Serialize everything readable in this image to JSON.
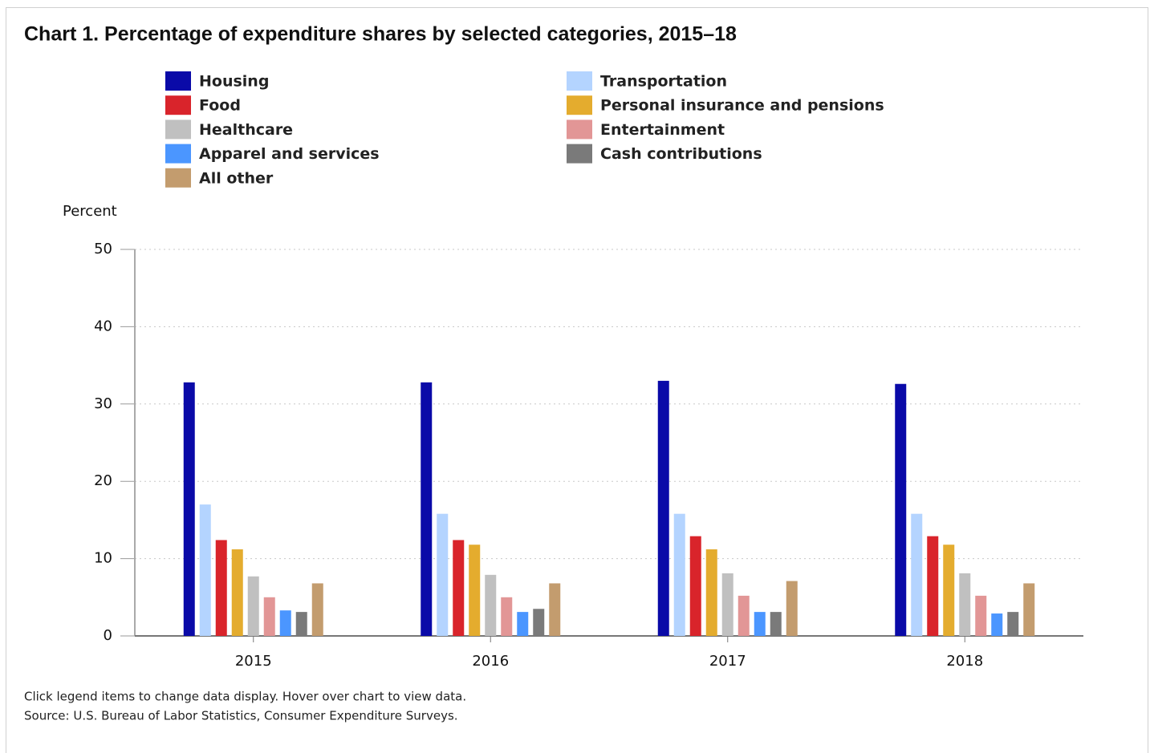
{
  "chart_data": {
    "type": "bar",
    "title": "Chart 1. Percentage of expenditure shares by selected categories, 2015–18",
    "y_label": "Percent",
    "categories": [
      "2015",
      "2016",
      "2017",
      "2018"
    ],
    "series": [
      {
        "name": "Housing",
        "color": "#0a0aa8",
        "values": [
          32.8,
          32.8,
          33.0,
          32.6
        ]
      },
      {
        "name": "Transportation",
        "color": "#b4d4ff",
        "values": [
          17.0,
          15.8,
          15.8,
          15.8
        ]
      },
      {
        "name": "Food",
        "color": "#d9242b",
        "values": [
          12.4,
          12.4,
          12.9,
          12.9
        ]
      },
      {
        "name": "Personal insurance and pensions",
        "color": "#e4ac2e",
        "values": [
          11.2,
          11.8,
          11.2,
          11.8
        ]
      },
      {
        "name": "Healthcare",
        "color": "#c0c0c0",
        "values": [
          7.7,
          7.9,
          8.1,
          8.1
        ]
      },
      {
        "name": "Entertainment",
        "color": "#e29696",
        "values": [
          5.0,
          5.0,
          5.2,
          5.2
        ]
      },
      {
        "name": "Apparel and services",
        "color": "#4b96ff",
        "values": [
          3.3,
          3.1,
          3.1,
          2.9
        ]
      },
      {
        "name": "Cash contributions",
        "color": "#7a7a7a",
        "values": [
          3.1,
          3.5,
          3.1,
          3.1
        ]
      },
      {
        "name": "All other",
        "color": "#c39c6e",
        "values": [
          6.8,
          6.8,
          7.1,
          6.8
        ]
      }
    ],
    "ylim": [
      0,
      50
    ],
    "yticks": [
      0,
      10,
      20,
      30,
      40,
      50
    ],
    "grid": true,
    "notes": [
      "Click legend items to change data display. Hover over chart to view data.",
      "Source: U.S. Bureau of Labor Statistics, Consumer Expenditure Surveys."
    ]
  }
}
